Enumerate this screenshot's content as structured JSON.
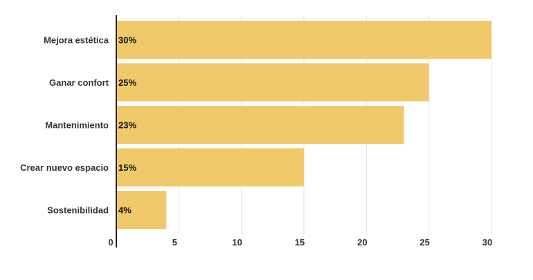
{
  "chart_data": {
    "type": "bar",
    "orientation": "horizontal",
    "categories": [
      "Mejora estética",
      "Ganar confort",
      "Mantenimiento",
      "Crear nuevo espacio",
      "Sostenibilidad"
    ],
    "values": [
      30,
      25,
      23,
      15,
      4
    ],
    "value_labels": [
      "30%",
      "25%",
      "23%",
      "15%",
      "4%"
    ],
    "x_ticks": [
      0,
      5,
      10,
      15,
      20,
      25,
      30
    ],
    "xlim": [
      0,
      30
    ],
    "grid": true,
    "legend": "none",
    "title": "",
    "xlabel": "",
    "ylabel": ""
  },
  "colors": {
    "bar": "#f0c96a",
    "grid": "#e3e3e3",
    "axis": "#222222"
  }
}
